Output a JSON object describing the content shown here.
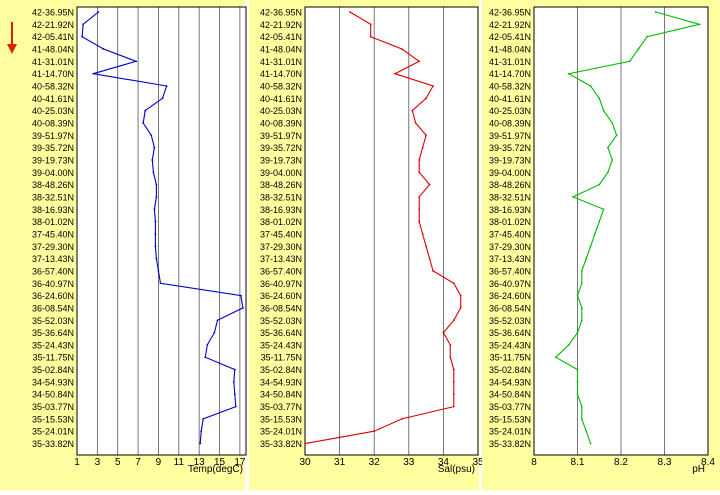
{
  "indicator_color": "#dd2200",
  "chart_data": [
    {
      "type": "line",
      "xlabel": "Temp(degC)",
      "x_ticks": [
        "1",
        "3",
        "5",
        "7",
        "9",
        "11",
        "13",
        "15",
        "17"
      ],
      "xlim": [
        1,
        17.6
      ],
      "color": "#0000cc",
      "y_labels": [
        "42-36.95N",
        "42-21.92N",
        "42-05.41N",
        "41-48.04N",
        "41-31.01N",
        "41-14.70N",
        "40-58.32N",
        "40-41.61N",
        "40-25.03N",
        "40-08.39N",
        "39-51.97N",
        "39-35.72N",
        "39-19.73N",
        "39-04.00N",
        "38-48.26N",
        "38-32.51N",
        "38-16.93N",
        "38-01.02N",
        "37-45.40N",
        "37-29.30N",
        "37-13.43N",
        "36-57.40N",
        "36-40.97N",
        "36-24.60N",
        "36-08.54N",
        "35-52.03N",
        "35-36.64N",
        "35-24.43N",
        "35-11.75N",
        "35-02.84N",
        "34-54.93N",
        "34-50.84N",
        "35-03.77N",
        "35-15.53N",
        "35-24.01N",
        "35-33.82N"
      ],
      "values": [
        3.1,
        1.6,
        1.5,
        3.6,
        6.8,
        2.6,
        9.8,
        9.4,
        7.7,
        7.5,
        8.3,
        8.6,
        8.4,
        8.5,
        8.8,
        8.8,
        8.6,
        8.7,
        8.7,
        8.7,
        8.8,
        9.0,
        9.2,
        17.1,
        17.3,
        14.8,
        14.5,
        13.8,
        13.6,
        16.5,
        16.4,
        16.5,
        16.6,
        13.4,
        13.2,
        13.1
      ]
    },
    {
      "type": "line",
      "xlabel": "Sal(psu)",
      "x_ticks": [
        "30",
        "31",
        "32",
        "33",
        "34",
        "35"
      ],
      "xlim": [
        30,
        35
      ],
      "color": "#dd0000",
      "y_labels": [
        "42-36.95N",
        "42-21.92N",
        "42-05.41N",
        "41-48.04N",
        "41-31.01N",
        "41-14.70N",
        "40-58.32N",
        "40-41.61N",
        "40-25.03N",
        "40-08.39N",
        "39-51.97N",
        "39-35.72N",
        "39-19.73N",
        "39-04.00N",
        "38-48.26N",
        "38-32.51N",
        "38-16.93N",
        "38-01.02N",
        "37-45.40N",
        "37-29.30N",
        "37-13.43N",
        "36-57.40N",
        "36-40.97N",
        "36-24.60N",
        "36-08.54N",
        "35-52.03N",
        "35-36.64N",
        "35-24.43N",
        "35-11.75N",
        "35-02.84N",
        "34-54.93N",
        "34-50.84N",
        "35-03.77N",
        "35-15.53N",
        "35-24.01N",
        "35-33.82N"
      ],
      "values": [
        31.3,
        31.9,
        31.9,
        32.8,
        33.3,
        32.6,
        33.7,
        33.5,
        33.1,
        33.2,
        33.5,
        33.4,
        33.3,
        33.3,
        33.6,
        33.3,
        33.3,
        33.3,
        33.4,
        33.5,
        33.6,
        33.7,
        34.3,
        34.5,
        34.5,
        34.3,
        34.0,
        34.2,
        34.2,
        34.3,
        34.3,
        34.3,
        34.3,
        32.8,
        32.0,
        30.0
      ]
    },
    {
      "type": "line",
      "xlabel": "pH",
      "x_ticks": [
        "8",
        "8.1",
        "8.2",
        "8.3",
        "8.4"
      ],
      "xlim": [
        8,
        8.4
      ],
      "color": "#00bb00",
      "y_labels": [
        "42-36.95N",
        "42-21.92N",
        "42-05.41N",
        "41-48.04N",
        "41-31.01N",
        "41-14.70N",
        "40-58.32N",
        "40-41.61N",
        "40-25.03N",
        "40-08.39N",
        "39-51.97N",
        "39-35.72N",
        "39-19.73N",
        "39-04.00N",
        "38-48.26N",
        "38-32.51N",
        "38-16.93N",
        "38-01.02N",
        "37-45.40N",
        "37-29.30N",
        "37-13.43N",
        "36-57.40N",
        "36-40.97N",
        "36-24.60N",
        "36-08.54N",
        "35-52.03N",
        "35-36.64N",
        "35-24.43N",
        "35-11.75N",
        "35-02.84N",
        "34-54.93N",
        "34-50.84N",
        "35-03.77N",
        "35-15.53N",
        "35-24.01N",
        "35-33.82N"
      ],
      "values": [
        8.28,
        8.38,
        8.26,
        8.24,
        8.22,
        8.08,
        8.13,
        8.15,
        8.16,
        8.18,
        8.19,
        8.17,
        8.18,
        8.17,
        8.15,
        8.09,
        8.16,
        8.15,
        8.14,
        8.13,
        8.12,
        8.11,
        8.11,
        8.1,
        8.11,
        8.11,
        8.1,
        8.08,
        8.05,
        8.1,
        8.1,
        8.1,
        8.11,
        8.11,
        8.12,
        8.13
      ]
    }
  ]
}
